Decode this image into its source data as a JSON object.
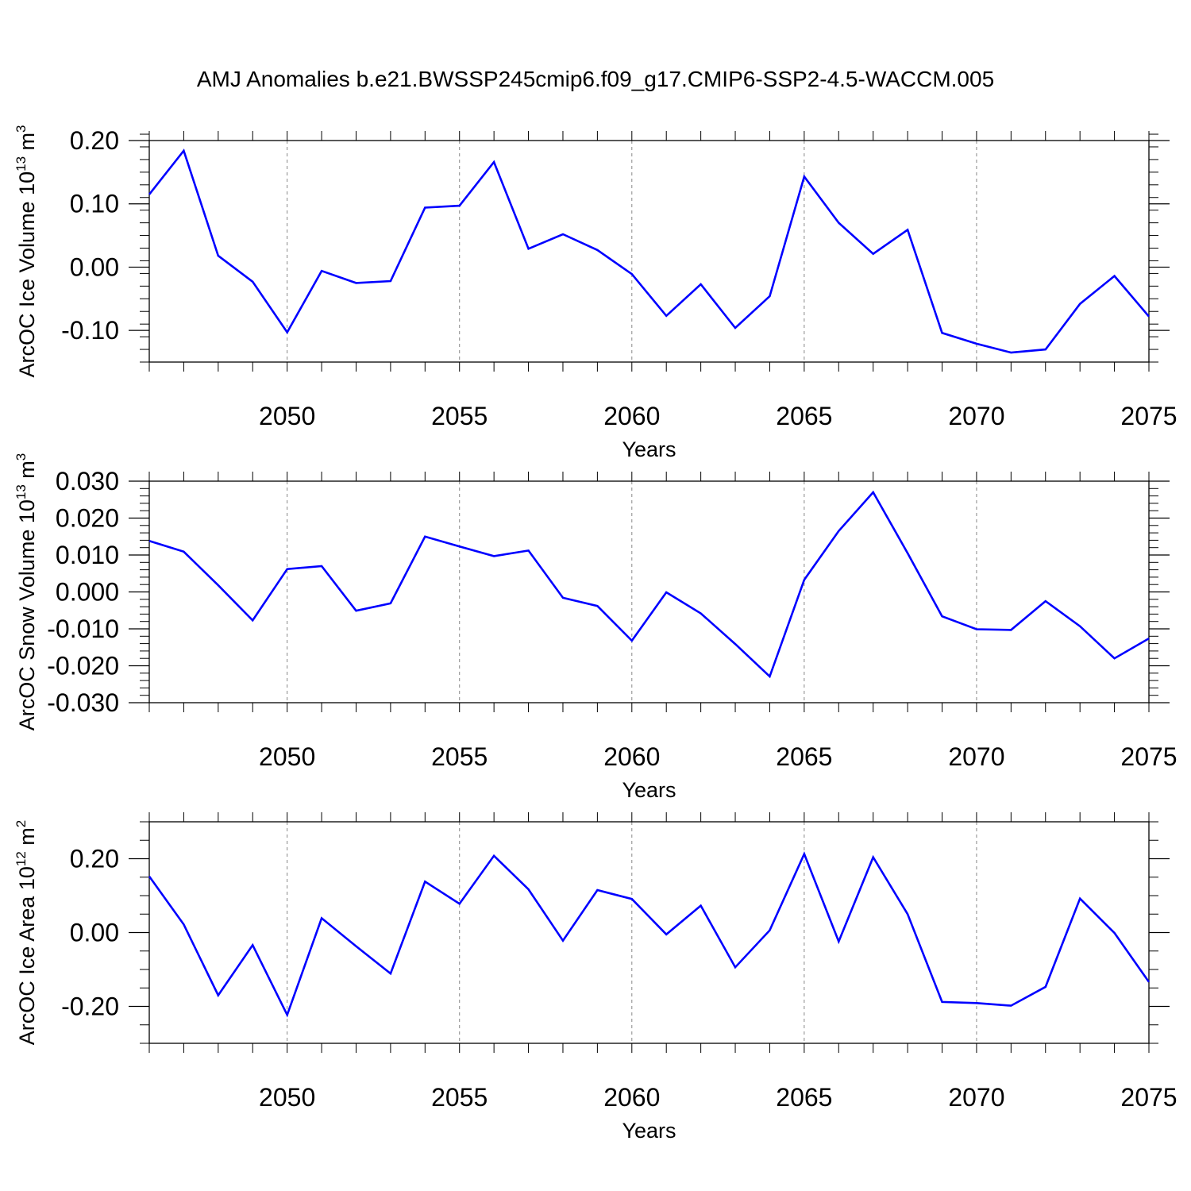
{
  "title": "AMJ Anomalies b.e21.BWSSP245cmip6.f09_g17.CMIP6-SSP2-4.5-WACCM.005",
  "line_color": "#0000ff",
  "chart_data": [
    {
      "type": "line",
      "ylabel_main": "ArcOC Ice Volume 10",
      "ylabel_exp": "13",
      "ylabel_unit": "m",
      "ylabel_unit_exp": "3",
      "xlabel": "Years",
      "xlim": [
        2046,
        2075
      ],
      "ylim": [
        -0.15,
        0.2
      ],
      "yticks": [
        0.2,
        0.1,
        0.0,
        -0.1
      ],
      "ytick_labels": [
        "0.20",
        "0.10",
        "0.00",
        "-0.10"
      ],
      "yminor": 0.02,
      "xticks": [
        2050,
        2055,
        2060,
        2065,
        2070,
        2075
      ],
      "xtick_labels": [
        "2050",
        "2055",
        "2060",
        "2065",
        "2070",
        "2075"
      ],
      "x": [
        2046,
        2047,
        2048,
        2049,
        2050,
        2051,
        2052,
        2053,
        2054,
        2055,
        2056,
        2057,
        2058,
        2059,
        2060,
        2061,
        2062,
        2063,
        2064,
        2065,
        2066,
        2067,
        2068,
        2069,
        2070,
        2071,
        2072,
        2073,
        2074,
        2075
      ],
      "values": [
        0.115,
        0.184,
        0.018,
        -0.023,
        -0.103,
        -0.006,
        -0.025,
        -0.022,
        0.094,
        0.097,
        0.166,
        0.029,
        0.052,
        0.027,
        -0.011,
        -0.077,
        -0.027,
        -0.096,
        -0.046,
        0.143,
        0.07,
        0.021,
        0.059,
        -0.104,
        -0.121,
        -0.135,
        -0.13,
        -0.058,
        -0.014,
        -0.078
      ]
    },
    {
      "type": "line",
      "ylabel_main": "ArcOC Snow Volume 10",
      "ylabel_exp": "13",
      "ylabel_unit": "m",
      "ylabel_unit_exp": "3",
      "xlabel": "Years",
      "xlim": [
        2046,
        2075
      ],
      "ylim": [
        -0.03,
        0.03
      ],
      "yticks": [
        0.03,
        0.02,
        0.01,
        0.0,
        -0.01,
        -0.02,
        -0.03
      ],
      "ytick_labels": [
        "0.030",
        "0.020",
        "0.010",
        "0.000",
        "-0.010",
        "-0.020",
        "-0.030"
      ],
      "yminor": 0.002,
      "xticks": [
        2050,
        2055,
        2060,
        2065,
        2070,
        2075
      ],
      "xtick_labels": [
        "2050",
        "2055",
        "2060",
        "2065",
        "2070",
        "2075"
      ],
      "x": [
        2046,
        2047,
        2048,
        2049,
        2050,
        2051,
        2052,
        2053,
        2054,
        2055,
        2056,
        2057,
        2058,
        2059,
        2060,
        2061,
        2062,
        2063,
        2064,
        2065,
        2066,
        2067,
        2068,
        2069,
        2070,
        2071,
        2072,
        2073,
        2074,
        2075
      ],
      "values": [
        0.0138,
        0.0109,
        0.0018,
        -0.0077,
        0.0062,
        0.007,
        -0.0051,
        -0.0031,
        0.015,
        0.0123,
        0.0097,
        0.0112,
        -0.0016,
        -0.0038,
        -0.0132,
        -0.0001,
        -0.0058,
        -0.0141,
        -0.0229,
        0.0033,
        0.0165,
        0.027,
        0.0105,
        -0.0066,
        -0.0101,
        -0.0103,
        -0.0025,
        -0.0093,
        -0.018,
        -0.0126
      ]
    },
    {
      "type": "line",
      "ylabel_main": "ArcOC Ice Area 10",
      "ylabel_exp": "12",
      "ylabel_unit": "m",
      "ylabel_unit_exp": "2",
      "xlabel": "Years",
      "xlim": [
        2046,
        2075
      ],
      "ylim": [
        -0.3,
        0.3
      ],
      "yticks": [
        0.2,
        0.0,
        -0.2
      ],
      "ytick_labels": [
        "0.20",
        "0.00",
        "-0.20"
      ],
      "yminor": 0.05,
      "xticks": [
        2050,
        2055,
        2060,
        2065,
        2070,
        2075
      ],
      "xtick_labels": [
        "2050",
        "2055",
        "2060",
        "2065",
        "2070",
        "2075"
      ],
      "x": [
        2046,
        2047,
        2048,
        2049,
        2050,
        2051,
        2052,
        2053,
        2054,
        2055,
        2056,
        2057,
        2058,
        2059,
        2060,
        2061,
        2062,
        2063,
        2064,
        2065,
        2066,
        2067,
        2068,
        2069,
        2070,
        2071,
        2072,
        2073,
        2074,
        2075
      ],
      "values": [
        0.152,
        0.022,
        -0.17,
        -0.034,
        -0.223,
        0.039,
        -0.037,
        -0.111,
        0.138,
        0.078,
        0.208,
        0.117,
        -0.022,
        0.115,
        0.091,
        -0.005,
        0.073,
        -0.094,
        0.006,
        0.213,
        -0.024,
        0.204,
        0.05,
        -0.188,
        -0.191,
        -0.198,
        -0.147,
        0.092,
        -0.001,
        -0.134
      ]
    }
  ]
}
